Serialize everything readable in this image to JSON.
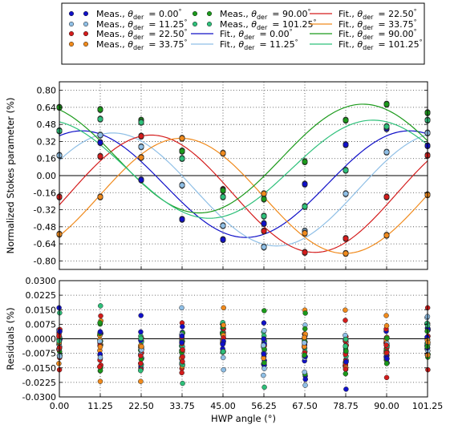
{
  "chart_data": [
    {
      "type": "scatter",
      "xlabel": "HWP angle (°)",
      "ylabel": "Normalized Stokes parameter (%)",
      "xlim": [
        0,
        101.25
      ],
      "ylim": [
        -0.88,
        0.88
      ],
      "x_ticks": [
        "0.00",
        "11.25",
        "22.50",
        "33.75",
        "45.00",
        "56.25",
        "67.50",
        "78.75",
        "90.00",
        "101.25"
      ],
      "y_ticks": [
        "-0.80",
        "-0.64",
        "-0.48",
        "-0.32",
        "-0.16",
        "0.00",
        "0.16",
        "0.32",
        "0.48",
        "0.64",
        "0.80"
      ],
      "grid": true,
      "zero_line": true,
      "x": [
        0,
        11.25,
        22.5,
        33.75,
        45,
        56.25,
        67.5,
        78.75,
        90,
        101.25
      ],
      "series": [
        {
          "name": "Meas., θder = 0.00°",
          "kind": "points",
          "color": "#1010c8",
          "values": [
            0.42,
            0.31,
            -0.04,
            -0.41,
            -0.6,
            -0.45,
            -0.08,
            0.29,
            0.44,
            0.28
          ]
        },
        {
          "name": "Meas., θder = 11.25°",
          "kind": "points",
          "color": "#8fbfe6",
          "values": [
            0.19,
            0.38,
            0.27,
            -0.09,
            -0.47,
            -0.67,
            -0.52,
            -0.17,
            0.22,
            0.4
          ]
        },
        {
          "name": "Meas., θder = 22.50°",
          "kind": "points",
          "color": "#d41c1c",
          "values": [
            -0.2,
            0.18,
            0.37,
            0.23,
            -0.13,
            -0.52,
            -0.72,
            -0.59,
            -0.2,
            0.19
          ]
        },
        {
          "name": "Meas., θder = 33.75°",
          "kind": "points",
          "color": "#f08a1c",
          "values": [
            -0.55,
            -0.2,
            0.17,
            0.35,
            0.21,
            -0.17,
            -0.54,
            -0.73,
            -0.56,
            -0.18
          ]
        },
        {
          "name": "Meas., θder = 90.00°",
          "kind": "points",
          "color": "#1b9a1b",
          "values": [
            0.64,
            0.62,
            0.52,
            0.23,
            -0.14,
            -0.22,
            0.13,
            0.52,
            0.67,
            0.59
          ]
        },
        {
          "name": "Meas., θder = 101.25°",
          "kind": "points",
          "color": "#2ec07a",
          "values": [
            0.42,
            0.53,
            0.5,
            0.16,
            -0.2,
            -0.38,
            -0.29,
            0.05,
            0.46,
            0.52
          ]
        }
      ],
      "fit_curves": [
        {
          "name": "Fit., θder = 0.00°",
          "color": "#1010c8",
          "offset": -0.08,
          "a": 0.5,
          "phase": 25
        },
        {
          "name": "Fit., θder = 11.25°",
          "color": "#8fbfe6",
          "offset": -0.13,
          "a": 0.53,
          "phase": 59
        },
        {
          "name": "Fit., θder = 22.50°",
          "color": "#d41c1c",
          "offset": -0.17,
          "a": 0.55,
          "phase": 101
        },
        {
          "name": "Fit., θder = 33.75°",
          "color": "#f08a1c",
          "offset": -0.19,
          "a": 0.54,
          "phase": 134
        },
        {
          "name": "Fit., θder = 90.00°",
          "color": "#1b9a1b",
          "offset": 0.16,
          "a": 0.51,
          "phase": -26
        },
        {
          "name": "Fit., θder = 101.25°",
          "color": "#2ec07a",
          "offset": 0.06,
          "a": 0.46,
          "phase": -15
        }
      ]
    },
    {
      "type": "scatter",
      "xlabel": "HWP angle (°)",
      "ylabel": "Residuals (%)",
      "xlim": [
        0,
        101.25
      ],
      "ylim": [
        -0.03,
        0.03
      ],
      "x_ticks": [
        "0.00",
        "11.25",
        "22.50",
        "33.75",
        "45.00",
        "56.25",
        "67.50",
        "78.75",
        "90.00",
        "101.25"
      ],
      "y_ticks": [
        "-0.0300",
        "-0.0225",
        "-0.0150",
        "-0.0075",
        "0.0000",
        "0.0075",
        "0.0150",
        "0.0225",
        "0.0300"
      ],
      "grid": true,
      "zero_line": true,
      "x": [
        0,
        11.25,
        22.5,
        33.75,
        45,
        56.25,
        67.5,
        78.75,
        90,
        101.25
      ],
      "spread_low": [
        -0.016,
        -0.022,
        -0.022,
        -0.023,
        -0.016,
        -0.025,
        -0.024,
        -0.026,
        -0.02,
        -0.016
      ],
      "spread_high": [
        0.016,
        0.017,
        0.012,
        0.016,
        0.016,
        0.0145,
        0.0148,
        0.0148,
        0.012,
        0.016
      ]
    }
  ],
  "legend": {
    "placement": "top",
    "entries": [
      {
        "kind": "marker",
        "color": "#1010c8",
        "prefix": "Meas., ",
        "theta": "θ",
        "sub": "der",
        "value": "= 0.00",
        "deg": "°"
      },
      {
        "kind": "marker",
        "color": "#8fbfe6",
        "prefix": "Meas., ",
        "theta": "θ",
        "sub": "der",
        "value": "= 11.25",
        "deg": "°"
      },
      {
        "kind": "marker",
        "color": "#d41c1c",
        "prefix": "Meas., ",
        "theta": "θ",
        "sub": "der",
        "value": "= 22.50",
        "deg": "°"
      },
      {
        "kind": "marker",
        "color": "#f08a1c",
        "prefix": "Meas., ",
        "theta": "θ",
        "sub": "der",
        "value": "= 33.75",
        "deg": "°"
      },
      {
        "kind": "marker",
        "color": "#1b9a1b",
        "prefix": "Meas., ",
        "theta": "θ",
        "sub": "der",
        "value": "= 90.00",
        "deg": "°"
      },
      {
        "kind": "marker",
        "color": "#2ec07a",
        "prefix": "Meas., ",
        "theta": "θ",
        "sub": "der",
        "value": "= 101.25",
        "deg": "°"
      },
      {
        "kind": "line",
        "color": "#1010c8",
        "prefix": "Fit., ",
        "theta": "θ",
        "sub": "der",
        "value": "= 0.00",
        "deg": "°"
      },
      {
        "kind": "line",
        "color": "#8fbfe6",
        "prefix": "Fit., ",
        "theta": "θ",
        "sub": "der",
        "value": "= 11.25",
        "deg": "°"
      },
      {
        "kind": "line",
        "color": "#d41c1c",
        "prefix": "Fit., ",
        "theta": "θ",
        "sub": "der",
        "value": "= 22.50",
        "deg": "°"
      },
      {
        "kind": "line",
        "color": "#f08a1c",
        "prefix": "Fit., ",
        "theta": "θ",
        "sub": "der",
        "value": "= 33.75",
        "deg": "°"
      },
      {
        "kind": "line",
        "color": "#1b9a1b",
        "prefix": "Fit., ",
        "theta": "θ",
        "sub": "der",
        "value": "= 90.00",
        "deg": "°"
      },
      {
        "kind": "line",
        "color": "#2ec07a",
        "prefix": "Fit., ",
        "theta": "θ",
        "sub": "der",
        "value": "= 101.25",
        "deg": "°"
      }
    ]
  }
}
